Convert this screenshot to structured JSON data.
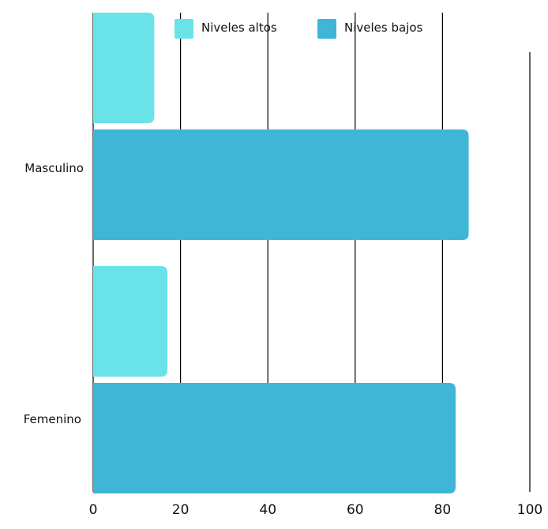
{
  "chart_data": {
    "type": "bar",
    "orientation": "horizontal",
    "categories": [
      "Masculino",
      "Femenino"
    ],
    "series": [
      {
        "name": "Niveles altos",
        "color": "#6ae3e8",
        "values": [
          14,
          17
        ]
      },
      {
        "name": "Niveles bajos",
        "color": "#40b6d6",
        "values": [
          86,
          83
        ]
      }
    ],
    "x_ticks": [
      "0",
      "20",
      "40",
      "60",
      "80",
      "100"
    ],
    "xlim": [
      0,
      100
    ],
    "grid": "vertical",
    "legend_position": "top"
  }
}
